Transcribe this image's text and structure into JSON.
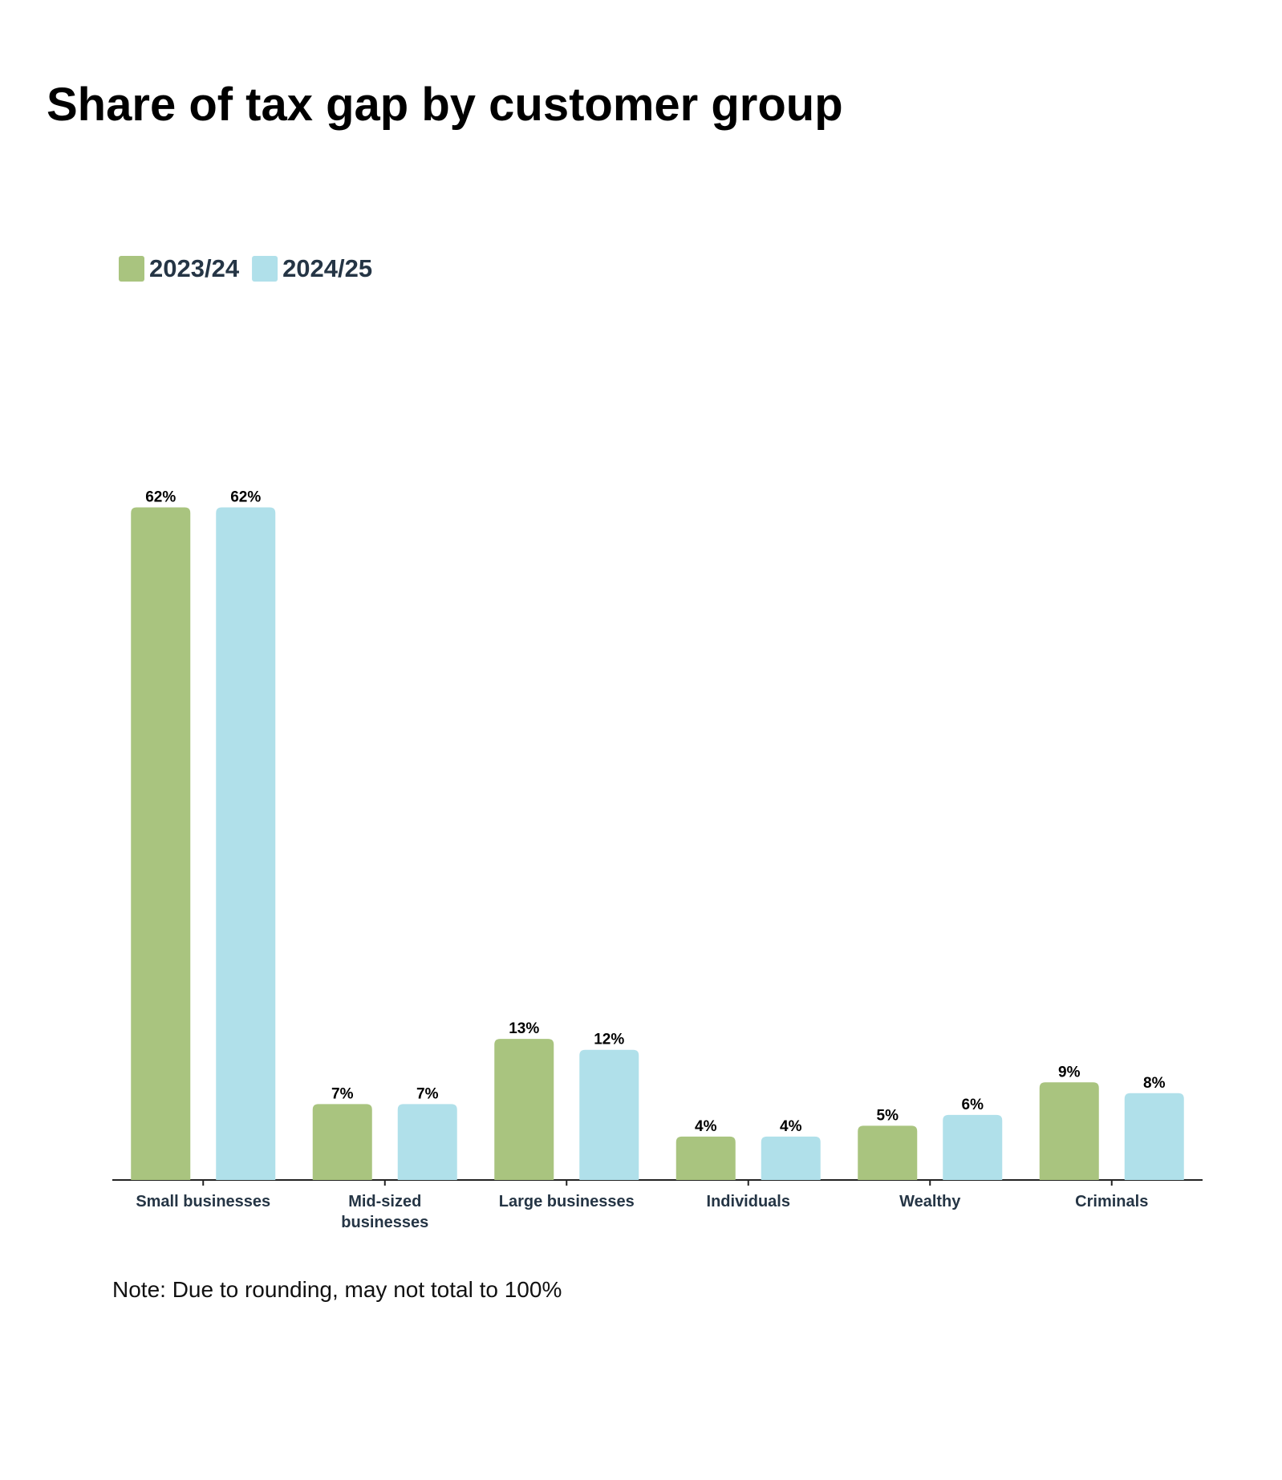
{
  "chart_data": {
    "type": "bar",
    "title": "Share of tax gap by customer group",
    "categories": [
      "Small businesses",
      "Mid-sized businesses",
      "Large businesses",
      "Individuals",
      "Wealthy",
      "Criminals"
    ],
    "series": [
      {
        "name": "2023/24",
        "color": "#a9c47f",
        "values": [
          62,
          7,
          13,
          4,
          5,
          9
        ],
        "value_labels": [
          "62%",
          "7%",
          "13%",
          "4%",
          "5%",
          "9%"
        ]
      },
      {
        "name": "2024/25",
        "color": "#b0e0ea",
        "values": [
          62,
          7,
          12,
          4,
          6,
          8
        ],
        "value_labels": [
          "62%",
          "7%",
          "12%",
          "4%",
          "6%",
          "8%"
        ]
      }
    ],
    "note": "Note: Due to rounding, may not total to 100%"
  }
}
